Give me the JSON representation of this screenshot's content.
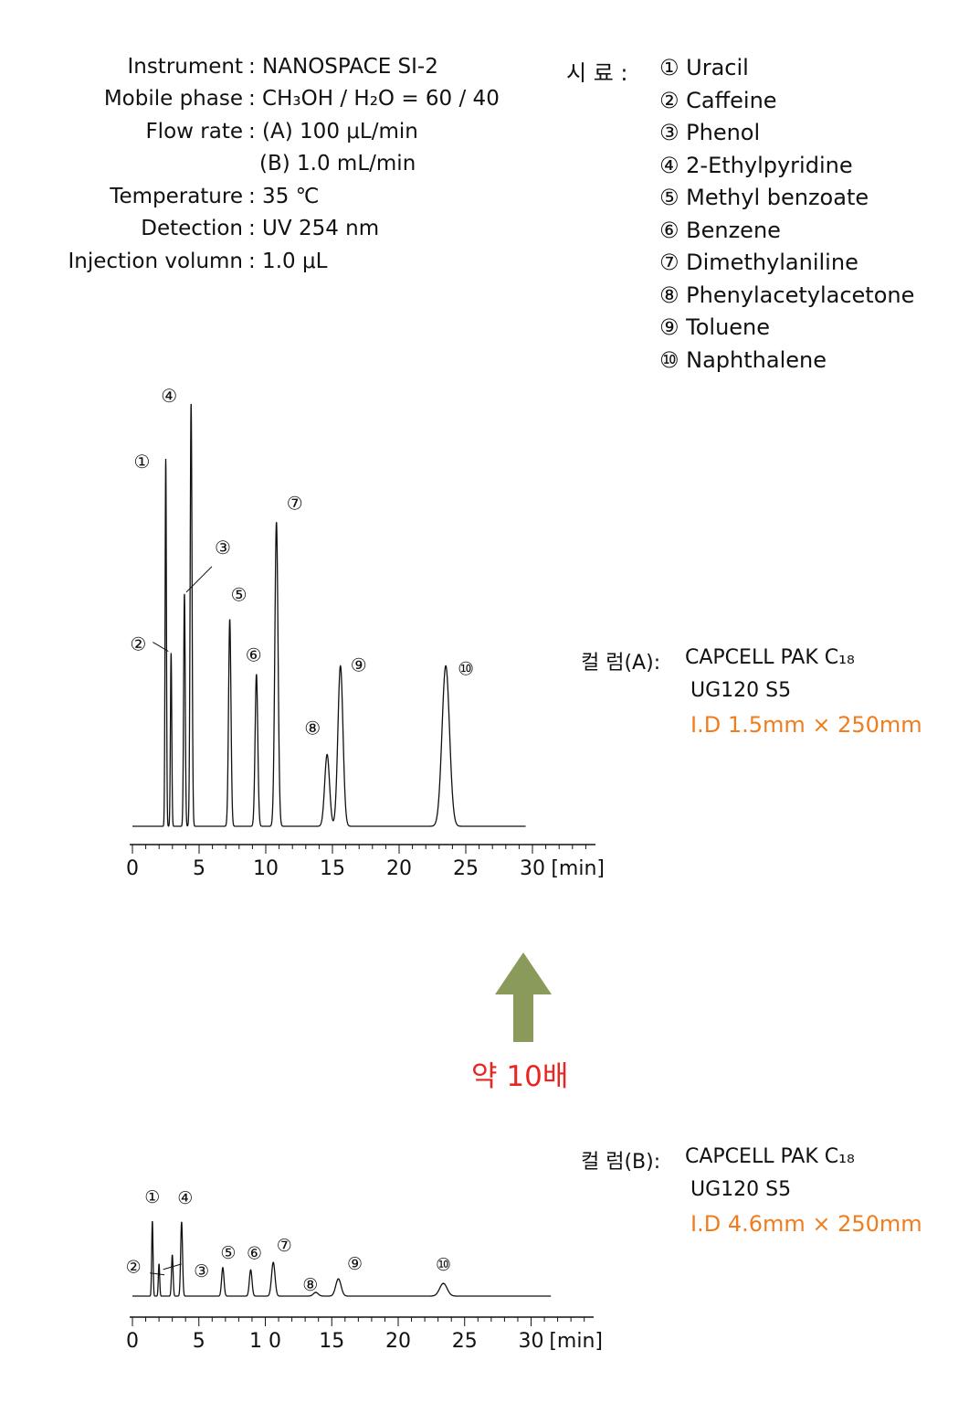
{
  "conditions": [
    {
      "label": "Instrument",
      "value": ": NANOSPACE SI-2"
    },
    {
      "label": "Mobile phase",
      "value": ": CH₃OH / H₂O = 60 / 40"
    },
    {
      "label": "Flow rate",
      "value": ": (A) 100 μL/min"
    },
    {
      "label": "",
      "value": "(B) 1.0 mL/min"
    },
    {
      "label": "Temperature",
      "value": ": 35 ℃"
    },
    {
      "label": "Detection",
      "value": ": UV 254 nm"
    },
    {
      "label": "Injection volumn",
      "value": ": 1.0 μL"
    }
  ],
  "samples": {
    "header": "시  료 :",
    "items": [
      "① Uracil",
      "② Caffeine",
      "③ Phenol",
      "④ 2-Ethylpyridine",
      "⑤ Methyl benzoate",
      "⑥ Benzene",
      "⑦ Dimethylaniline",
      "⑧ Phenylacetylacetone",
      "⑨ Toluene",
      "⑩ Naphthalene"
    ]
  },
  "column_a": {
    "label": "컬  럼(A):",
    "line1": "CAPCELL PAK C₁₈",
    "line2": "UG120 S5",
    "line3": "I.D 1.5mm × 250mm"
  },
  "column_b": {
    "label": "컬  럼(B):",
    "line1": "CAPCELL PAK C₁₈",
    "line2": "UG120 S5",
    "line3": "I.D 4.6mm × 250mm"
  },
  "note": "약 10배",
  "colors": {
    "arrow": "#8a9a5b",
    "note": "#e8251f",
    "id_text": "#f07d1d",
    "trace": "#111111"
  },
  "chart_data": [
    {
      "type": "line",
      "title": "",
      "xlabel": "[min]",
      "ylabel": "",
      "xlim": [
        0,
        35
      ],
      "xticks": [
        "0",
        "5",
        "10",
        "15",
        "20",
        "25",
        "30"
      ],
      "x_end": 29.5,
      "ymax": 1.0,
      "series": [
        {
          "peaks": [
            {
              "label": "①",
              "rt": 2.5,
              "height": 0.87,
              "width": 0.05
            },
            {
              "label": "②",
              "rt": 2.9,
              "height": 0.41,
              "width": 0.05
            },
            {
              "label": "③",
              "rt": 3.9,
              "height": 0.55,
              "width": 0.06
            },
            {
              "label": "④",
              "rt": 4.4,
              "height": 1.0,
              "width": 0.07
            },
            {
              "label": "⑤",
              "rt": 7.3,
              "height": 0.49,
              "width": 0.09
            },
            {
              "label": "⑥",
              "rt": 9.3,
              "height": 0.36,
              "width": 0.1
            },
            {
              "label": "⑦",
              "rt": 10.8,
              "height": 0.72,
              "width": 0.12
            },
            {
              "label": "⑧",
              "rt": 14.6,
              "height": 0.17,
              "width": 0.18
            },
            {
              "label": "⑨",
              "rt": 15.6,
              "height": 0.38,
              "width": 0.19
            },
            {
              "label": "⑩",
              "rt": 23.5,
              "height": 0.38,
              "width": 0.28
            }
          ]
        }
      ]
    },
    {
      "type": "line",
      "title": "",
      "xlabel": "[min]",
      "ylabel": "",
      "xlim": [
        0,
        35
      ],
      "xticks": [
        "0",
        "5",
        "1 0",
        "15",
        "20",
        "25",
        "30"
      ],
      "x_end": 31.5,
      "ymax": 1.0,
      "series": [
        {
          "peaks": [
            {
              "label": "①",
              "rt": 1.5,
              "height": 1.0,
              "width": 0.05
            },
            {
              "label": "②",
              "rt": 2.0,
              "height": 0.43,
              "width": 0.05
            },
            {
              "label": "③",
              "rt": 3.0,
              "height": 0.55,
              "width": 0.06
            },
            {
              "label": "④",
              "rt": 3.7,
              "height": 0.99,
              "width": 0.07
            },
            {
              "label": "⑤",
              "rt": 6.8,
              "height": 0.38,
              "width": 0.09
            },
            {
              "label": "⑥",
              "rt": 8.9,
              "height": 0.35,
              "width": 0.1
            },
            {
              "label": "⑦",
              "rt": 10.6,
              "height": 0.45,
              "width": 0.13
            },
            {
              "label": "⑧",
              "rt": 13.8,
              "height": 0.05,
              "width": 0.18
            },
            {
              "label": "⑨",
              "rt": 15.5,
              "height": 0.23,
              "width": 0.2
            },
            {
              "label": "⑩",
              "rt": 23.4,
              "height": 0.17,
              "width": 0.28
            }
          ]
        }
      ]
    }
  ]
}
